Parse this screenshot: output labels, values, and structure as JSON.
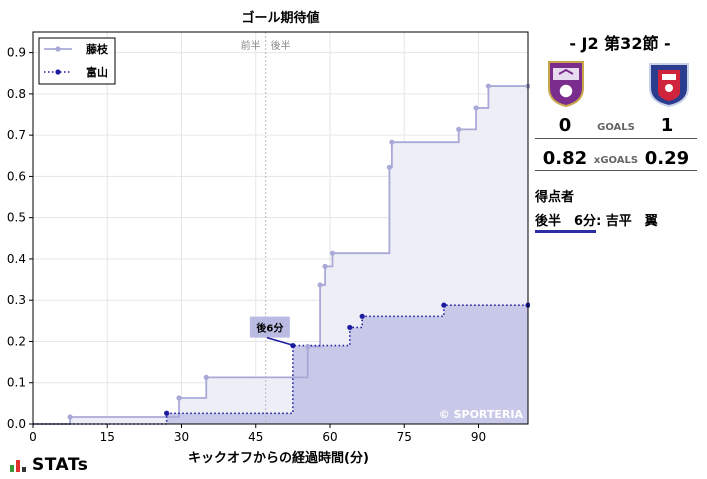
{
  "chart_data": {
    "type": "line",
    "title": "ゴール期待値",
    "xlabel": "キックオフからの経過時間(分)",
    "ylabel": "",
    "xlim": [
      0,
      100
    ],
    "ylim": [
      0,
      0.95
    ],
    "xticks": [
      0,
      15,
      30,
      45,
      60,
      75,
      90
    ],
    "yticks": [
      0.0,
      0.1,
      0.2,
      0.3,
      0.4,
      0.5,
      0.6,
      0.7,
      0.8,
      0.9
    ],
    "grid": true,
    "legend_position": "top-left",
    "halftime_x": 47,
    "halftime_labels": {
      "first": "前半",
      "second": "後半"
    },
    "series": [
      {
        "name": "藤枝",
        "color": "#a9a9d8",
        "fill": "#eeeef6",
        "style": "solid",
        "steps": [
          [
            0,
            0.0
          ],
          [
            7.5,
            0.017
          ],
          [
            29.5,
            0.063
          ],
          [
            35,
            0.113
          ],
          [
            55.5,
            0.188
          ],
          [
            58,
            0.337
          ],
          [
            59,
            0.382
          ],
          [
            60.5,
            0.414
          ],
          [
            72,
            0.622
          ],
          [
            72.5,
            0.683
          ],
          [
            86,
            0.714
          ],
          [
            89.5,
            0.766
          ],
          [
            92,
            0.819
          ],
          [
            100,
            0.819
          ]
        ]
      },
      {
        "name": "富山",
        "color": "#1c1ca0",
        "fill": "#c8c8e8",
        "style": "dotted",
        "steps": [
          [
            0,
            0.0
          ],
          [
            27,
            0.026
          ],
          [
            52.5,
            0.19
          ],
          [
            64,
            0.234
          ],
          [
            66.5,
            0.261
          ],
          [
            83,
            0.288
          ],
          [
            100,
            0.288
          ]
        ]
      }
    ],
    "annotations": [
      {
        "text": "後6分",
        "x": 52.5,
        "y": 0.19
      }
    ],
    "watermark": "© SPORTERIA"
  },
  "match": {
    "title": "-  J2 第32節  -",
    "home_score": "0",
    "away_score": "1",
    "goals_label": "GOALS",
    "home_xg": "0.82",
    "away_xg": "0.29",
    "xg_label": "xGOALS",
    "home_crest_icon": "fujieda-crest-icon",
    "away_crest_icon": "toyama-crest-icon"
  },
  "scorers": {
    "title": "得点者",
    "items": [
      {
        "half": "後半",
        "minute": "6分",
        "name": ": 吉平　翼"
      }
    ]
  },
  "brand": {
    "name": "STATs"
  }
}
